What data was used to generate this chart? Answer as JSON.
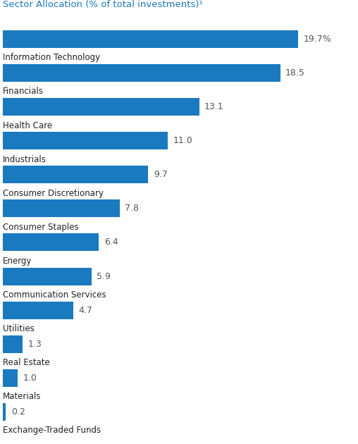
{
  "title": "Sector Allocation (% of total investments)¹",
  "title_color": "#1a7abf",
  "bar_color": "#1a7abf",
  "background_color": "#ffffff",
  "categories": [
    "Information Technology",
    "Financials",
    "Health Care",
    "Industrials",
    "Consumer Discretionary",
    "Consumer Staples",
    "Energy",
    "Communication Services",
    "Utilities",
    "Real Estate",
    "Materials",
    "Exchange-Traded Funds"
  ],
  "values": [
    19.7,
    18.5,
    13.1,
    11.0,
    9.7,
    7.8,
    6.4,
    5.9,
    4.7,
    1.3,
    1.0,
    0.2
  ],
  "value_labels": [
    "19.7%",
    "18.5",
    "13.1",
    "11.0",
    "9.7",
    "7.8",
    "6.4",
    "5.9",
    "4.7",
    "1.3",
    "1.0",
    "0.2"
  ],
  "xlim_max": 23.5,
  "bar_height": 0.52,
  "label_fontsize": 8.5,
  "value_fontsize": 9.0,
  "title_fontsize": 9.5,
  "label_color": "#222222",
  "value_color": "#555555",
  "line_color": "#aaaaaa"
}
